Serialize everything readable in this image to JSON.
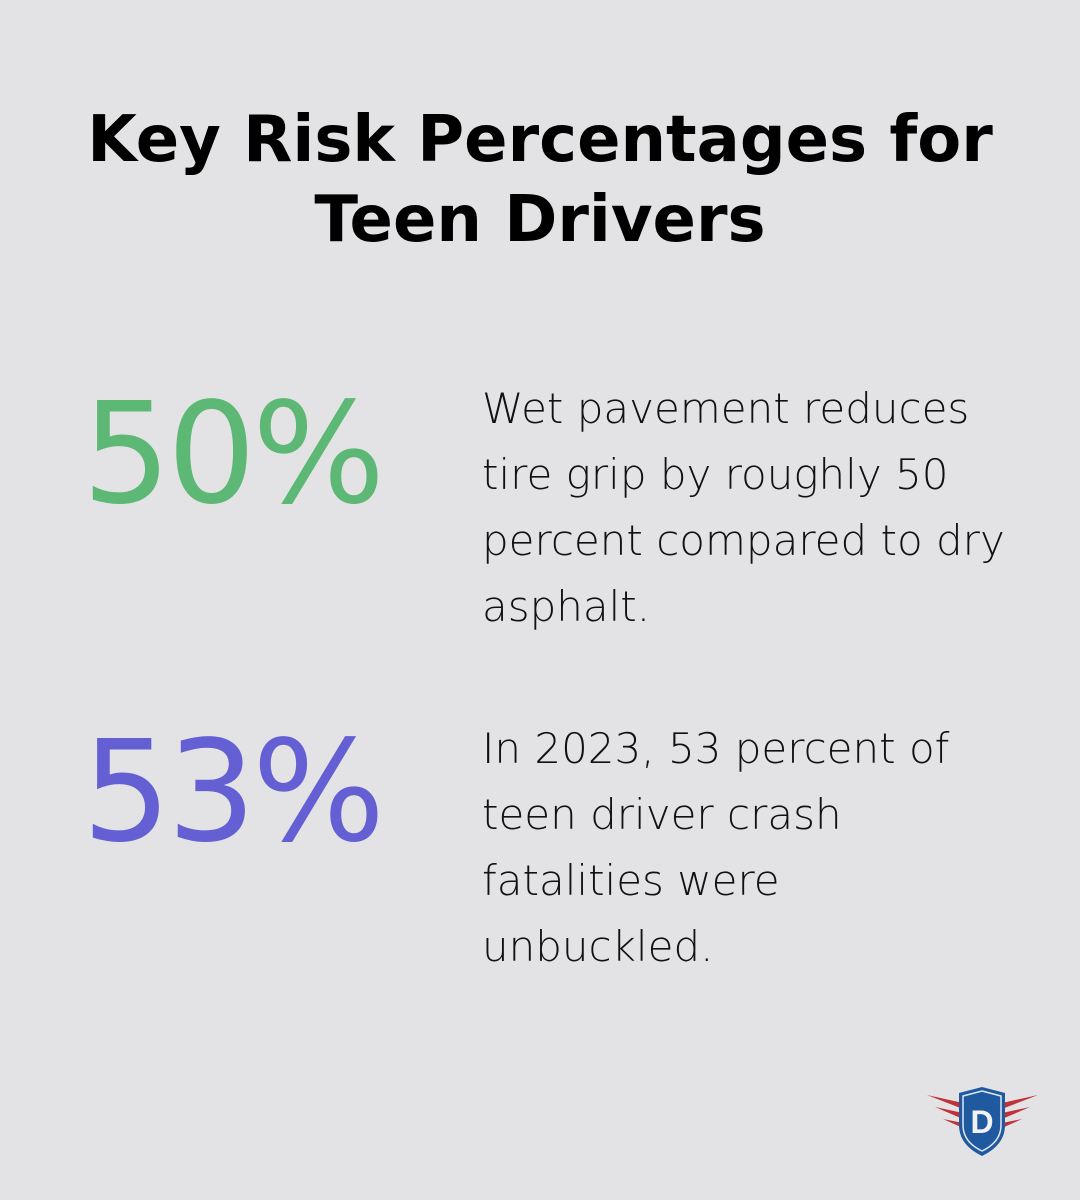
{
  "title": "Key Risk Percentages for Teen Drivers",
  "stats": [
    {
      "value": "50%",
      "color": "#5cb874",
      "text": "Wet pavement reduces tire grip by roughly 50 percent compared to dry asphalt."
    },
    {
      "value": "53%",
      "color": "#6460d4",
      "text": "In 2023, 53 percent of teen driver crash fatalities were unbuckled."
    }
  ],
  "logo": {
    "letter": "D",
    "icon": "shield-wings-logo",
    "colors": {
      "shield": "#1f5aa0",
      "wings": "#c0313a"
    }
  }
}
